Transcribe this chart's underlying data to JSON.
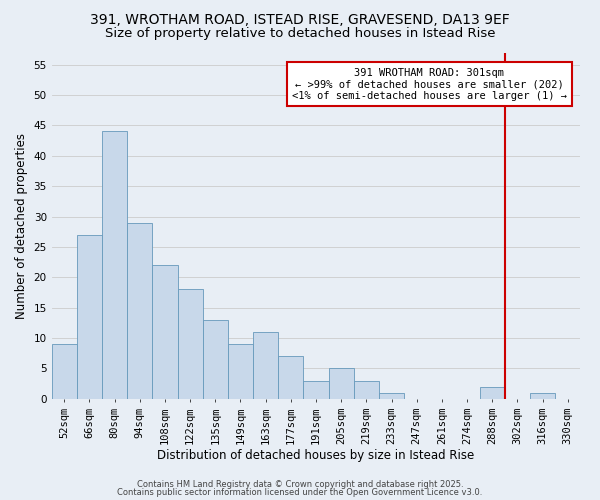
{
  "title_line1": "391, WROTHAM ROAD, ISTEAD RISE, GRAVESEND, DA13 9EF",
  "title_line2": "Size of property relative to detached houses in Istead Rise",
  "xlabel": "Distribution of detached houses by size in Istead Rise",
  "ylabel": "Number of detached properties",
  "bin_labels": [
    "52sqm",
    "66sqm",
    "80sqm",
    "94sqm",
    "108sqm",
    "122sqm",
    "135sqm",
    "149sqm",
    "163sqm",
    "177sqm",
    "191sqm",
    "205sqm",
    "219sqm",
    "233sqm",
    "247sqm",
    "261sqm",
    "274sqm",
    "288sqm",
    "302sqm",
    "316sqm",
    "330sqm"
  ],
  "values": [
    9,
    27,
    44,
    29,
    22,
    18,
    13,
    9,
    11,
    7,
    3,
    5,
    3,
    1,
    0,
    0,
    0,
    2,
    0,
    1,
    0
  ],
  "bar_color": "#c8d8ea",
  "bar_edge_color": "#6699bb",
  "background_color": "#e8eef5",
  "grid_color": "#cccccc",
  "red_line_x": 17.5,
  "red_line_color": "#cc0000",
  "annotation_line1": "391 WROTHAM ROAD: 301sqm",
  "annotation_line2": "← >99% of detached houses are smaller (202)",
  "annotation_line3": "<1% of semi-detached houses are larger (1) →",
  "annotation_box_color": "#ffffff",
  "annotation_box_edge": "#cc0000",
  "ylim": [
    0,
    57
  ],
  "yticks": [
    0,
    5,
    10,
    15,
    20,
    25,
    30,
    35,
    40,
    45,
    50,
    55
  ],
  "footer_line1": "Contains HM Land Registry data © Crown copyright and database right 2025.",
  "footer_line2": "Contains public sector information licensed under the Open Government Licence v3.0.",
  "title_fontsize": 10,
  "subtitle_fontsize": 9.5,
  "axis_label_fontsize": 8.5,
  "tick_fontsize": 7.5,
  "annotation_fontsize": 7.5,
  "footer_fontsize": 6
}
